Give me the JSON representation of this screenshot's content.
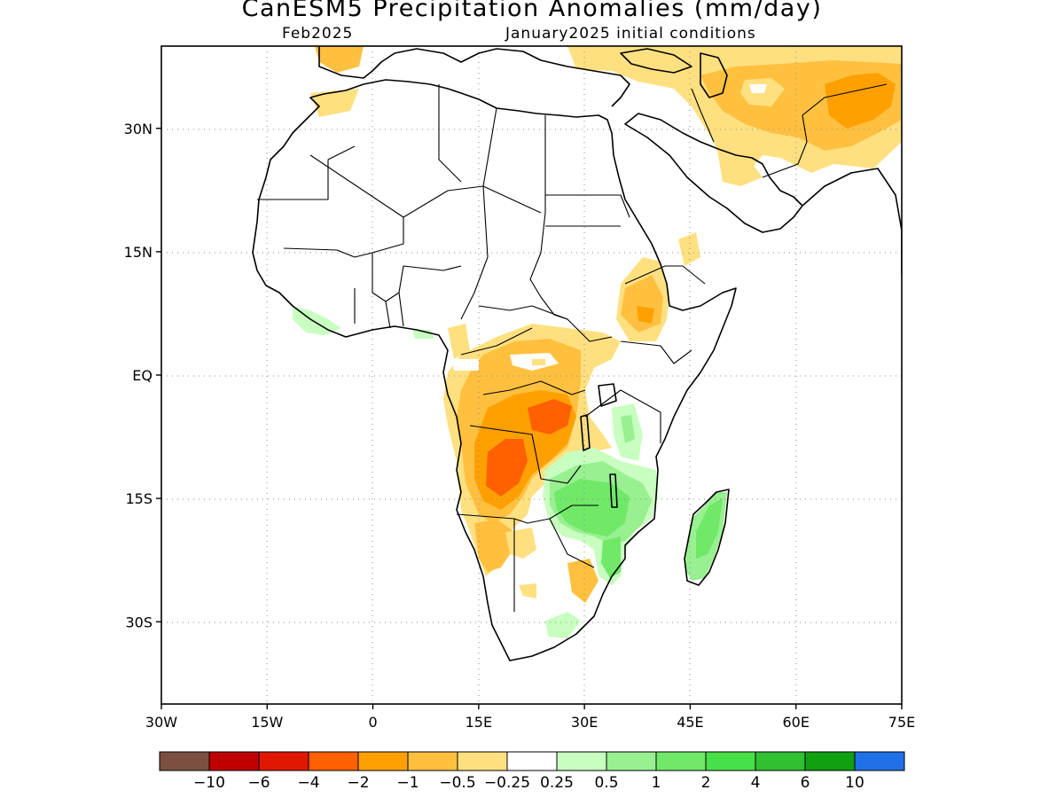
{
  "header": {
    "title": "CanESM5 Precipitation Anomalies (mm/day)",
    "valid_month": "Feb2025",
    "initial_conditions": "January2025 initial conditions"
  },
  "map": {
    "lon_range": [
      -30,
      75
    ],
    "lat_range": [
      -40,
      40
    ],
    "lon_ticks": [
      {
        "value": -30,
        "label": "30W"
      },
      {
        "value": -15,
        "label": "15W"
      },
      {
        "value": 0,
        "label": "0"
      },
      {
        "value": 15,
        "label": "15E"
      },
      {
        "value": 30,
        "label": "30E"
      },
      {
        "value": 45,
        "label": "45E"
      },
      {
        "value": 60,
        "label": "60E"
      },
      {
        "value": 75,
        "label": "75E"
      }
    ],
    "lat_ticks": [
      {
        "value": 30,
        "label": "30N"
      },
      {
        "value": 15,
        "label": "15N"
      },
      {
        "value": 0,
        "label": "EQ"
      },
      {
        "value": -15,
        "label": "15S"
      },
      {
        "value": -30,
        "label": "30S"
      }
    ],
    "gridlines": true
  },
  "colorbar": {
    "colors": [
      "#7b5040",
      "#c00000",
      "#e01800",
      "#ff6000",
      "#ffa000",
      "#ffc040",
      "#ffe080",
      "#ffffff",
      "#c8ffc0",
      "#98f090",
      "#70e868",
      "#48e048",
      "#30c030",
      "#10a010",
      "#2070e8"
    ],
    "labels": [
      "−10",
      "−6",
      "−4",
      "−2",
      "−1",
      "−0.5",
      "−0.25",
      "0.25",
      "0.5",
      "1",
      "2",
      "4",
      "6",
      "10"
    ]
  }
}
